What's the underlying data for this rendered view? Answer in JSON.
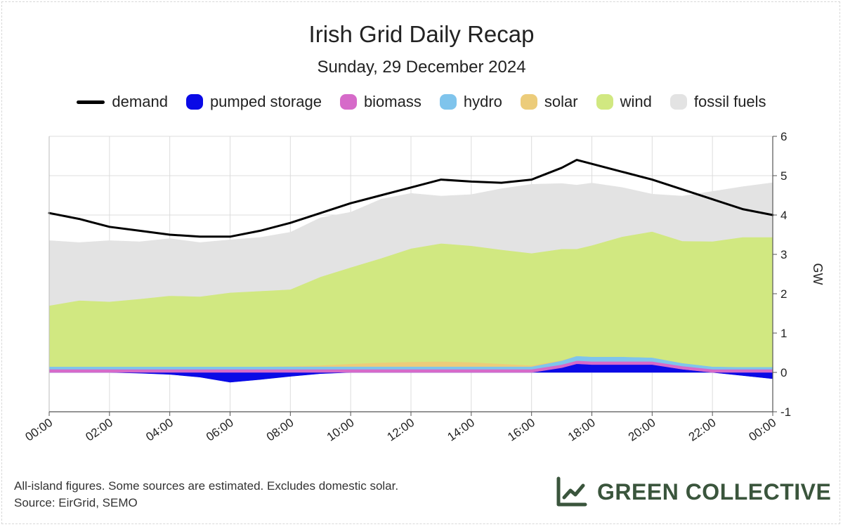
{
  "chart_data": {
    "type": "area",
    "title": "Irish Grid Daily Recap",
    "subtitle": "Sunday, 29 December 2024",
    "ylabel": "GW",
    "xlabel": "",
    "ylim": [
      -1,
      6
    ],
    "yticks": [
      -1,
      0,
      1,
      2,
      3,
      4,
      5,
      6
    ],
    "xticks": [
      "00:00",
      "02:00",
      "04:00",
      "06:00",
      "08:00",
      "10:00",
      "12:00",
      "14:00",
      "16:00",
      "18:00",
      "20:00",
      "22:00",
      "00:00"
    ],
    "x_hours": [
      0,
      1,
      2,
      3,
      4,
      5,
      6,
      7,
      8,
      9,
      10,
      11,
      12,
      13,
      14,
      15,
      16,
      17,
      17.5,
      18,
      19,
      20,
      21,
      22,
      23,
      24
    ],
    "legend": [
      "demand",
      "pumped storage",
      "biomass",
      "hydro",
      "solar",
      "wind",
      "fossil fuels"
    ],
    "stack_series": [
      {
        "name": "pumped storage",
        "color": "#0a0ae6",
        "values": [
          0,
          0,
          0,
          -0.02,
          -0.05,
          -0.12,
          -0.25,
          -0.18,
          -0.1,
          -0.03,
          0,
          0,
          0,
          0,
          0,
          0,
          0,
          0.12,
          0.22,
          0.2,
          0.2,
          0.2,
          0.08,
          0,
          -0.08,
          -0.16
        ]
      },
      {
        "name": "biomass",
        "color": "#d66ac9",
        "values": [
          0.08,
          0.08,
          0.08,
          0.08,
          0.08,
          0.08,
          0.08,
          0.08,
          0.08,
          0.08,
          0.08,
          0.08,
          0.08,
          0.08,
          0.08,
          0.08,
          0.08,
          0.08,
          0.08,
          0.08,
          0.08,
          0.08,
          0.08,
          0.08,
          0.08,
          0.08
        ]
      },
      {
        "name": "hydro",
        "color": "#7fc4ec",
        "values": [
          0.07,
          0.07,
          0.07,
          0.07,
          0.07,
          0.07,
          0.07,
          0.07,
          0.07,
          0.07,
          0.07,
          0.07,
          0.07,
          0.07,
          0.07,
          0.07,
          0.07,
          0.1,
          0.12,
          0.12,
          0.12,
          0.1,
          0.08,
          0.07,
          0.06,
          0.06
        ]
      },
      {
        "name": "solar",
        "color": "#eccc7a",
        "values": [
          0,
          0,
          0,
          0,
          0,
          0,
          0,
          0,
          0.01,
          0.03,
          0.07,
          0.1,
          0.12,
          0.13,
          0.11,
          0.07,
          0.03,
          0.01,
          0,
          0,
          0,
          0,
          0,
          0,
          0,
          0
        ]
      },
      {
        "name": "wind",
        "color": "#d1e881",
        "values": [
          1.55,
          1.68,
          1.65,
          1.72,
          1.8,
          1.78,
          1.88,
          1.92,
          1.95,
          2.25,
          2.45,
          2.65,
          2.88,
          3.0,
          2.96,
          2.9,
          2.85,
          2.83,
          2.72,
          2.83,
          3.05,
          3.2,
          3.1,
          3.18,
          3.3,
          3.3
        ]
      },
      {
        "name": "fossil fuels",
        "color": "#e3e3e3",
        "values": [
          1.65,
          1.47,
          1.55,
          1.45,
          1.45,
          1.37,
          1.34,
          1.36,
          1.45,
          1.5,
          1.4,
          1.5,
          1.4,
          1.2,
          1.3,
          1.55,
          1.75,
          1.66,
          1.62,
          1.58,
          1.25,
          0.95,
          1.14,
          1.27,
          1.28,
          1.38
        ]
      }
    ],
    "demand": {
      "name": "demand",
      "color": "#000000",
      "values": [
        4.05,
        3.9,
        3.7,
        3.6,
        3.5,
        3.45,
        3.45,
        3.6,
        3.8,
        4.05,
        4.3,
        4.5,
        4.7,
        4.9,
        4.85,
        4.82,
        4.9,
        5.2,
        5.4,
        5.3,
        5.1,
        4.9,
        4.65,
        4.4,
        4.15,
        4.0
      ]
    }
  },
  "footnote": {
    "line1": "All-island figures. Some sources are estimated. Excludes domestic solar.",
    "line2": "Source: EirGrid, SEMO"
  },
  "brand": {
    "name": "GREEN COLLECTIVE",
    "icon": "line-chart-icon",
    "color": "#3a553c"
  }
}
